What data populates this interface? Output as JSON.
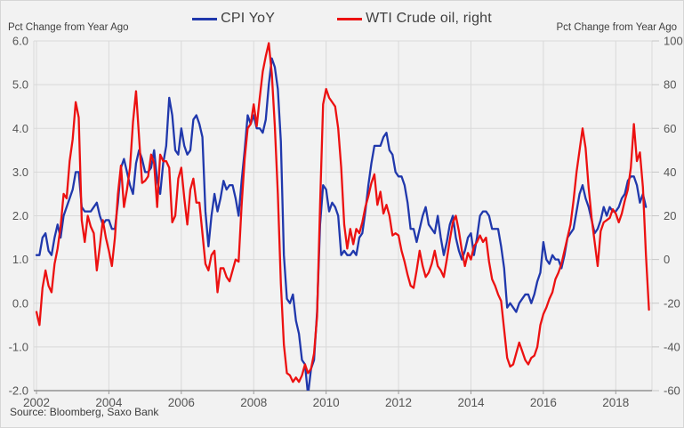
{
  "footer": {
    "source": "Source: Bloomberg, Saxo Bank"
  },
  "chart_data": {
    "type": "line",
    "title": "",
    "grid": true,
    "legend_position": "top-center",
    "x_min": 2002.0,
    "x_max": 2019.0,
    "x_tick_years": [
      2002,
      2004,
      2006,
      2008,
      2010,
      2012,
      2014,
      2016,
      2018
    ],
    "left_axis": {
      "title": "Pct Change from Year Ago",
      "min": -2.0,
      "max": 6.0,
      "tick_labels": [
        "6.0",
        "5.0",
        "4.0",
        "3.0",
        "2.0",
        "1.0",
        "0.0",
        "-1.0",
        "-2.0"
      ],
      "tick_values": [
        6,
        5,
        4,
        3,
        2,
        1,
        0,
        -1,
        -2
      ]
    },
    "right_axis": {
      "title": "Pct Change from Year Ago",
      "min": -60,
      "max": 100,
      "tick_labels": [
        "100",
        "80",
        "60",
        "40",
        "20",
        "0",
        "-20",
        "-40",
        "-60"
      ],
      "tick_values": [
        100,
        80,
        60,
        40,
        20,
        0,
        -20,
        -40,
        -60
      ]
    },
    "colors": {
      "cpi": "#2038ac",
      "wti": "#ec1111",
      "grid": "#d9d9d9",
      "axis": "#7f7f7f"
    },
    "series": [
      {
        "name": "CPI YoY",
        "axis": "left",
        "color": "#2038ac",
        "start_year": 2002,
        "start_month": 1,
        "frequency": "monthly",
        "values": [
          1.1,
          1.1,
          1.5,
          1.6,
          1.2,
          1.1,
          1.5,
          1.8,
          1.5,
          2.0,
          2.2,
          2.4,
          2.6,
          3.0,
          3.0,
          2.2,
          2.1,
          2.1,
          2.1,
          2.2,
          2.3,
          2.0,
          1.8,
          1.9,
          1.9,
          1.7,
          1.7,
          2.3,
          3.1,
          3.3,
          3.0,
          2.7,
          2.5,
          3.2,
          3.5,
          3.3,
          3.0,
          3.0,
          3.1,
          3.5,
          2.8,
          2.5,
          3.2,
          3.6,
          4.7,
          4.3,
          3.5,
          3.4,
          4.0,
          3.6,
          3.4,
          3.5,
          4.2,
          4.3,
          4.1,
          3.8,
          2.1,
          1.3,
          2.0,
          2.5,
          2.1,
          2.4,
          2.8,
          2.6,
          2.7,
          2.7,
          2.4,
          2.0,
          2.8,
          3.5,
          4.3,
          4.1,
          4.3,
          4.0,
          4.0,
          3.9,
          4.2,
          5.0,
          5.6,
          5.4,
          4.9,
          3.7,
          1.1,
          0.1,
          0.0,
          0.2,
          -0.4,
          -0.7,
          -1.3,
          -1.4,
          -2.1,
          -1.5,
          -1.3,
          -0.2,
          1.8,
          2.7,
          2.6,
          2.1,
          2.3,
          2.2,
          2.0,
          1.1,
          1.2,
          1.1,
          1.1,
          1.2,
          1.1,
          1.5,
          1.6,
          2.1,
          2.7,
          3.2,
          3.6,
          3.6,
          3.6,
          3.8,
          3.9,
          3.5,
          3.4,
          3.0,
          2.9,
          2.9,
          2.7,
          2.3,
          1.7,
          1.7,
          1.4,
          1.7,
          2.0,
          2.2,
          1.8,
          1.7,
          1.6,
          2.0,
          1.5,
          1.1,
          1.4,
          1.8,
          2.0,
          1.5,
          1.2,
          1.0,
          1.2,
          1.5,
          1.6,
          1.1,
          1.5,
          2.0,
          2.1,
          2.1,
          2.0,
          1.7,
          1.7,
          1.7,
          1.3,
          0.8,
          -0.1,
          0.0,
          -0.1,
          -0.2,
          0.0,
          0.1,
          0.2,
          0.2,
          0.0,
          0.2,
          0.5,
          0.7,
          1.4,
          1.0,
          0.9,
          1.1,
          1.0,
          1.0,
          0.8,
          1.1,
          1.5,
          1.6,
          1.7,
          2.1,
          2.5,
          2.7,
          2.4,
          2.2,
          1.9,
          1.6,
          1.7,
          1.9,
          2.2,
          2.0,
          2.2,
          2.1,
          2.1,
          2.2,
          2.4,
          2.5,
          2.8,
          2.9,
          2.9,
          2.7,
          2.3,
          2.5,
          2.2
        ]
      },
      {
        "name": "WTI Crude oil, right",
        "axis": "right",
        "color": "#ec1111",
        "start_year": 2002,
        "start_month": 1,
        "frequency": "monthly",
        "values": [
          -24,
          -30,
          -13,
          -5,
          -12,
          -15,
          -2,
          5,
          15,
          30,
          28,
          45,
          55,
          72,
          65,
          18,
          8,
          20,
          15,
          12,
          -5,
          6,
          18,
          10,
          4,
          -3,
          10,
          30,
          43,
          24,
          32,
          42,
          63,
          77,
          56,
          35,
          36,
          38,
          48,
          44,
          24,
          48,
          45,
          45,
          42,
          17,
          20,
          37,
          42,
          28,
          16,
          32,
          37,
          26,
          26,
          12,
          -2,
          -5,
          2,
          4,
          -15,
          -4,
          -4,
          -8,
          -10,
          -5,
          0,
          -1,
          25,
          46,
          60,
          62,
          71,
          61,
          74,
          86,
          93,
          99,
          85,
          61,
          30,
          -11,
          -39,
          -52,
          -53,
          -56,
          -54,
          -56,
          -53,
          -48,
          -52,
          -50,
          -43,
          -26,
          25,
          71,
          78,
          74,
          72,
          70,
          60,
          42,
          16,
          5,
          14,
          7,
          14,
          12,
          17,
          24,
          29,
          35,
          39,
          25,
          31,
          21,
          25,
          20,
          11,
          12,
          11,
          4,
          -1,
          -7,
          -12,
          -13,
          -5,
          4,
          -3,
          -8,
          -6,
          -2,
          4,
          -3,
          -5,
          -8,
          0,
          9,
          17,
          20,
          13,
          4,
          -3,
          3,
          0,
          6,
          8,
          11,
          8,
          10,
          -1,
          -9,
          -12,
          -16,
          -19,
          -32,
          -45,
          -49,
          -48,
          -43,
          -38,
          -42,
          -46,
          -48,
          -45,
          -44,
          -40,
          -30,
          -25,
          -22,
          -18,
          -15,
          -9,
          -6,
          -2,
          4,
          10,
          16,
          27,
          40,
          50,
          60,
          51,
          33,
          19,
          8,
          -3,
          13,
          17,
          18,
          19,
          23,
          21,
          17,
          21,
          27,
          32,
          42,
          62,
          45,
          49,
          33,
          2,
          -23
        ]
      }
    ]
  }
}
